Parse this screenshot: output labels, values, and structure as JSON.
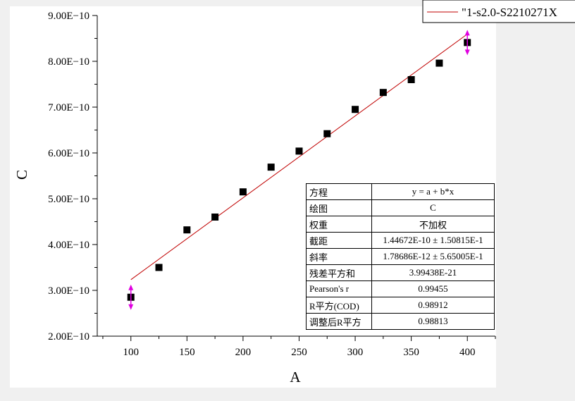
{
  "chart_data": {
    "type": "scatter",
    "xlabel": "A",
    "ylabel": "C",
    "xlim": [
      70,
      425
    ],
    "ylim": [
      2e-10,
      9e-10
    ],
    "x_ticks": [
      100,
      150,
      200,
      250,
      300,
      350,
      400
    ],
    "x_tick_labels": [
      "100",
      "150",
      "200",
      "250",
      "300",
      "350",
      "400"
    ],
    "y_ticks": [
      2e-10,
      3e-10,
      4e-10,
      5e-10,
      6e-10,
      7e-10,
      8e-10,
      9e-10
    ],
    "y_tick_labels": [
      "2.00E−10",
      "3.00E−10",
      "4.00E−10",
      "5.00E−10",
      "6.00E−10",
      "7.00E−10",
      "8.00E−10",
      "9.00E−10"
    ],
    "grid": false,
    "legend_position": "top-right",
    "series": [
      {
        "x": [
          100,
          125,
          150,
          175,
          200,
          225,
          250,
          275,
          300,
          325,
          350,
          375,
          400
        ],
        "y": [
          2.85e-10,
          3.5e-10,
          4.32e-10,
          4.6e-10,
          5.15e-10,
          5.69e-10,
          6.04e-10,
          6.42e-10,
          6.95e-10,
          7.32e-10,
          7.6e-10,
          7.96e-10,
          8.41e-10
        ],
        "marker": "square",
        "color": "#000000"
      }
    ],
    "fit_line": {
      "name": "\"1-s2.0-S2210271X",
      "color": "#c00000",
      "x_start": 100,
      "x_end": 400,
      "intercept": 1.44672e-10,
      "slope": 1.78686e-12
    },
    "drag_handle_color": "#e000e0",
    "fit_table": [
      {
        "key": "方程",
        "value": "y = a + b*x"
      },
      {
        "key": "绘图",
        "value": "C"
      },
      {
        "key": "权重",
        "value": "不加权"
      },
      {
        "key": "截距",
        "value": "1.44672E-10 ± 1.50815E-1"
      },
      {
        "key": "斜率",
        "value": "1.78686E-12 ± 5.65005E-1"
      },
      {
        "key": "残差平方和",
        "value": "3.99438E-21"
      },
      {
        "key": "Pearson's r",
        "value": "0.99455"
      },
      {
        "key": "R平方(COD)",
        "value": "0.98912"
      },
      {
        "key": "调整后R平方",
        "value": "0.98813"
      }
    ]
  }
}
